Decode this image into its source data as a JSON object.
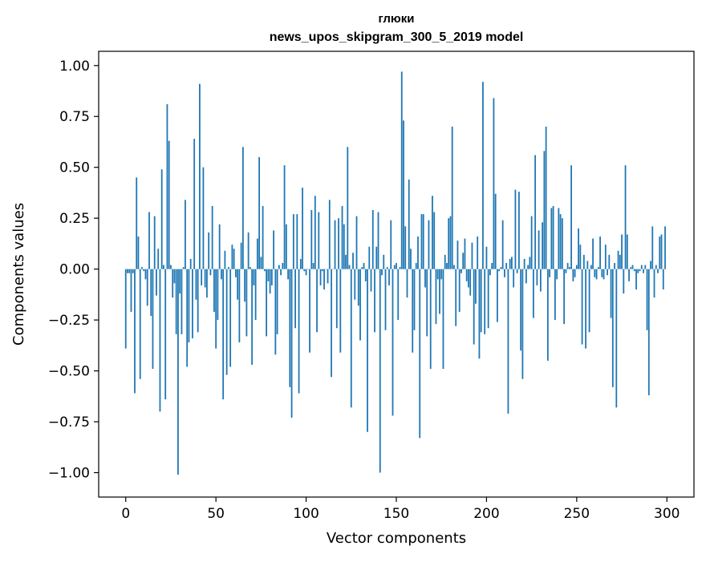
{
  "chart_data": {
    "type": "bar",
    "title": "глюки",
    "subtitle": "news_upos_skipgram_300_5_2019 model",
    "xlabel": "Vector components",
    "ylabel": "Components values",
    "xlim": [
      -15,
      315
    ],
    "ylim": [
      -1.12,
      1.07
    ],
    "xticks": [
      0,
      50,
      100,
      150,
      200,
      250,
      300
    ],
    "xtick_labels": [
      "0",
      "50",
      "100",
      "150",
      "200",
      "250",
      "300"
    ],
    "yticks": [
      -1.0,
      -0.75,
      -0.5,
      -0.25,
      0.0,
      0.25,
      0.5,
      0.75,
      1.0
    ],
    "ytick_labels": [
      "−1.00",
      "−0.75",
      "−0.50",
      "−0.25",
      "0.00",
      "0.25",
      "0.50",
      "0.75",
      "1.00"
    ],
    "grid": false,
    "bar_color": "#1f77b4",
    "values": [
      -0.39,
      -0.02,
      -0.02,
      -0.21,
      -0.02,
      -0.61,
      0.45,
      0.16,
      -0.54,
      0.01,
      -0.01,
      -0.05,
      -0.18,
      0.28,
      -0.23,
      -0.49,
      0.26,
      -0.13,
      0.1,
      -0.7,
      0.49,
      0.02,
      -0.64,
      0.81,
      0.63,
      0.02,
      -0.14,
      -0.07,
      -0.32,
      -1.01,
      -0.12,
      -0.32,
      0.01,
      0.34,
      -0.48,
      -0.36,
      0.05,
      -0.34,
      0.64,
      -0.15,
      -0.31,
      0.91,
      -0.08,
      0.5,
      -0.09,
      -0.14,
      0.18,
      -0.03,
      0.31,
      -0.21,
      -0.39,
      -0.25,
      0.22,
      -0.05,
      -0.64,
      0.09,
      -0.52,
      0.01,
      -0.48,
      0.12,
      0.1,
      -0.04,
      -0.15,
      -0.36,
      0.13,
      0.6,
      -0.16,
      -0.33,
      0.18,
      0.01,
      -0.47,
      -0.08,
      -0.25,
      0.15,
      0.55,
      0.06,
      0.31,
      -0.01,
      -0.33,
      -0.06,
      -0.12,
      -0.08,
      0.19,
      -0.42,
      -0.32,
      0.02,
      -0.03,
      0.03,
      0.51,
      0.22,
      -0.05,
      -0.58,
      -0.73,
      0.27,
      -0.29,
      0.27,
      -0.61,
      0.05,
      0.4,
      -0.01,
      -0.03,
      0.0,
      -0.41,
      0.29,
      0.03,
      0.36,
      -0.31,
      0.28,
      -0.08,
      -0.01,
      -0.1,
      0.0,
      -0.07,
      0.34,
      -0.53,
      0.0,
      0.24,
      -0.29,
      0.25,
      -0.41,
      0.31,
      0.22,
      0.07,
      0.6,
      0.02,
      -0.68,
      0.08,
      -0.15,
      0.26,
      -0.18,
      -0.35,
      0.01,
      0.03,
      -0.06,
      -0.8,
      0.11,
      -0.11,
      0.29,
      -0.31,
      0.11,
      0.28,
      -1.0,
      -0.03,
      0.07,
      -0.3,
      0.01,
      -0.08,
      0.24,
      -0.72,
      0.02,
      0.03,
      -0.25,
      0.01,
      0.97,
      0.73,
      0.21,
      -0.14,
      0.44,
      0.1,
      -0.41,
      -0.3,
      0.03,
      0.16,
      -0.83,
      0.27,
      0.27,
      -0.09,
      -0.33,
      0.24,
      -0.49,
      0.36,
      0.28,
      -0.27,
      -0.05,
      -0.22,
      -0.05,
      -0.49,
      0.07,
      0.03,
      0.25,
      0.26,
      0.7,
      0.02,
      -0.28,
      0.14,
      -0.21,
      -0.02,
      0.08,
      0.15,
      -0.06,
      -0.09,
      -0.13,
      0.13,
      -0.37,
      -0.17,
      0.16,
      -0.44,
      -0.31,
      0.92,
      -0.32,
      0.11,
      -0.29,
      -0.03,
      0.03,
      0.84,
      0.37,
      -0.26,
      -0.01,
      0.01,
      0.24,
      -0.04,
      0.03,
      -0.71,
      0.05,
      0.06,
      -0.09,
      0.39,
      -0.02,
      0.38,
      -0.4,
      -0.54,
      0.05,
      -0.07,
      0.02,
      0.06,
      0.26,
      -0.24,
      0.56,
      -0.08,
      0.19,
      -0.11,
      0.23,
      0.58,
      0.7,
      -0.45,
      -0.04,
      0.3,
      0.31,
      -0.25,
      -0.05,
      0.3,
      0.27,
      0.25,
      -0.27,
      -0.02,
      0.03,
      0.01,
      0.51,
      -0.06,
      -0.04,
      0.02,
      0.2,
      0.12,
      -0.37,
      0.07,
      -0.39,
      0.04,
      -0.31,
      0.02,
      0.15,
      -0.04,
      -0.05,
      0.01,
      0.16,
      -0.04,
      -0.05,
      0.12,
      -0.03,
      0.07,
      -0.24,
      -0.58,
      0.03,
      -0.68,
      0.09,
      0.07,
      0.17,
      -0.12,
      0.51,
      0.17,
      -0.06,
      0.01,
      0.02,
      -0.01,
      -0.1,
      -0.02,
      -0.01,
      0.02,
      -0.02,
      0.02,
      -0.3,
      -0.62,
      0.04,
      0.21,
      -0.14,
      0.02,
      -0.02,
      0.16,
      0.17,
      -0.1,
      0.21
    ],
    "values_tail_note_dummy_free": null
  }
}
